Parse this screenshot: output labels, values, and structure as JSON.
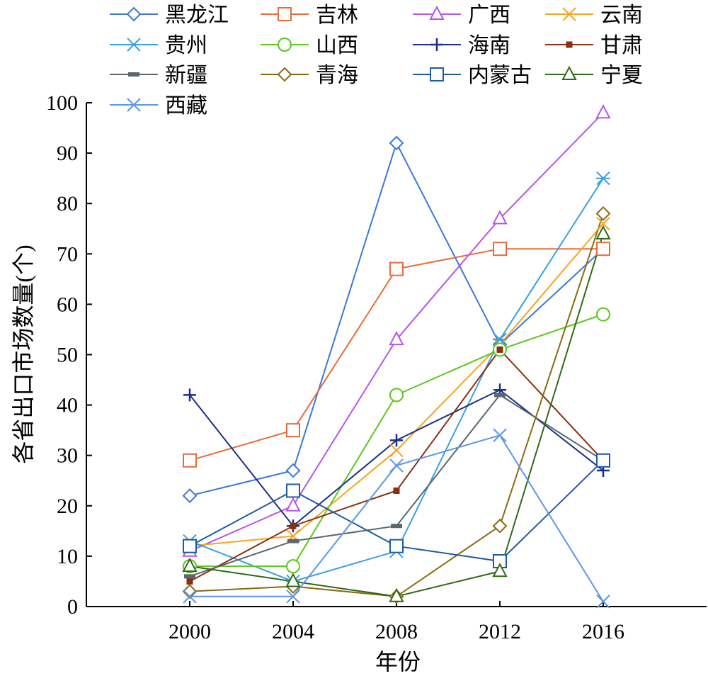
{
  "chart_data": {
    "type": "line",
    "xlabel": "年份",
    "ylabel": "各省出口市场数量(个)",
    "x": [
      2000,
      2004,
      2008,
      2012,
      2016
    ],
    "xlim": [
      1996,
      2020
    ],
    "ylim": [
      0,
      100
    ],
    "yticks": [
      0,
      10,
      20,
      30,
      40,
      50,
      60,
      70,
      80,
      90,
      100
    ],
    "xticks": [
      2000,
      2004,
      2008,
      2012,
      2016
    ],
    "grid": false,
    "legend_position": "top",
    "series": [
      {
        "name": "黑龙江",
        "color": "#3a78d8",
        "marker": "diamond",
        "values": [
          22,
          27,
          92,
          52,
          71
        ]
      },
      {
        "name": "吉林",
        "color": "#ea6b3a",
        "marker": "square",
        "values": [
          29,
          35,
          67,
          71,
          71
        ]
      },
      {
        "name": "广西",
        "color": "#b855e8",
        "marker": "triangle",
        "values": [
          11,
          20,
          53,
          77,
          98
        ]
      },
      {
        "name": "云南",
        "color": "#f5a51e",
        "marker": "x",
        "values": [
          12,
          14,
          31,
          52,
          76
        ]
      },
      {
        "name": "贵州",
        "color": "#3aa0e0",
        "marker": "asterisk",
        "values": [
          13,
          5,
          11,
          53,
          85
        ]
      },
      {
        "name": "山西",
        "color": "#5ac81e",
        "marker": "circle",
        "values": [
          8,
          8,
          42,
          51,
          58
        ]
      },
      {
        "name": "海南",
        "color": "#1a2f8a",
        "marker": "plus",
        "values": [
          42,
          16,
          33,
          43,
          27
        ]
      },
      {
        "name": "甘肃",
        "color": "#8a3010",
        "marker": "small-square",
        "values": [
          5,
          16,
          23,
          51,
          29
        ]
      },
      {
        "name": "新疆",
        "color": "#5c6670",
        "marker": "dash",
        "values": [
          6,
          13,
          16,
          42,
          29
        ]
      },
      {
        "name": "青海",
        "color": "#8a6a10",
        "marker": "diamond",
        "values": [
          3,
          4,
          2,
          16,
          78
        ]
      },
      {
        "name": "内蒙古",
        "color": "#1e5aa8",
        "marker": "square",
        "values": [
          12,
          23,
          12,
          9,
          29
        ]
      },
      {
        "name": "宁夏",
        "color": "#2e6a18",
        "marker": "triangle",
        "values": [
          8,
          5,
          2,
          7,
          74
        ]
      },
      {
        "name": "西藏",
        "color": "#5a96e8",
        "marker": "x",
        "values": [
          2,
          2,
          28,
          34,
          1
        ]
      }
    ]
  }
}
